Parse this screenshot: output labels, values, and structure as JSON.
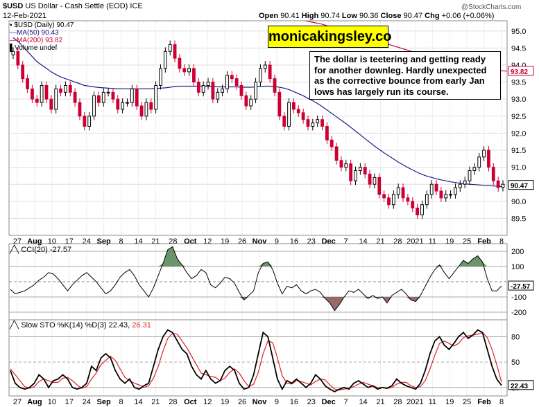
{
  "header": {
    "symbol": "$USD",
    "name": "US Dollar - Cash Settle (EOD)",
    "exchange": "ICE",
    "date": "12-Feb-2021",
    "open_label": "Open",
    "open": "90.41",
    "high_label": "High",
    "high": "90.74",
    "low_label": "Low",
    "low": "90.36",
    "close_label": "Close",
    "close": "90.47",
    "chg_label": "Chg",
    "chg": "+0.06 (+0.06%)",
    "logo": "@StockCharts.com"
  },
  "legend": {
    "price": "$USD (Daily) 90.47",
    "ma50": "MA(50) 90.43",
    "ma200": "MA(200) 93.82",
    "volume": "Volume undef"
  },
  "ad_label": "monicakingsley.co",
  "note_text": "The dollar is teetering and getting ready for another downleg. Hardly unexpected as the corrective bounce from early Jan lows has largely run its course.",
  "cci_label": "CCI(20) -27.57",
  "cci_value_box": "-27.57",
  "sto_label_main": "Slow STO %K(14) %D(3) 22.43,",
  "sto_label_d": "26.31",
  "sto_value_box": "22.43",
  "price_value_box": "90.47",
  "ma200_value_box": "93.82",
  "colors": {
    "up": "#000000",
    "down": "#cc0033",
    "ma50": "#1a1a8c",
    "ma200": "#cc0033",
    "cci_pos": "#5a8a5a",
    "cci_neg": "#8a5a5a",
    "sto_d": "#e02020",
    "ad_bg": "#ffff00",
    "grid": "#dddddd"
  },
  "chart_data": [
    {
      "type": "candlestick",
      "title": "$USD (Daily) 90.47",
      "ylim": [
        89.0,
        95.3
      ],
      "yticks": [
        89.5,
        90.0,
        90.5,
        91.0,
        91.5,
        92.0,
        92.5,
        93.0,
        93.5,
        94.0,
        94.5,
        95.0
      ],
      "xticks": [
        "27",
        "Aug",
        "10",
        "17",
        "24",
        "Sep",
        "8",
        "14",
        "21",
        "28",
        "Oct",
        "12",
        "19",
        "26",
        "Nov",
        "9",
        "16",
        "23",
        "Dec",
        "7",
        "14",
        "21",
        "28",
        "2021",
        "11",
        "19",
        "25",
        "Feb",
        "8"
      ],
      "close": [
        94.4,
        94.0,
        93.6,
        93.3,
        93.0,
        92.9,
        93.4,
        93.0,
        92.7,
        93.3,
        93.2,
        93.4,
        93.2,
        92.9,
        92.5,
        92.2,
        92.5,
        93.1,
        92.9,
        93.2,
        93.2,
        93.0,
        92.7,
        92.9,
        92.9,
        93.3,
        92.8,
        92.5,
        92.9,
        92.7,
        93.4,
        93.9,
        94.4,
        94.6,
        94.2,
        93.9,
        93.8,
        93.9,
        93.5,
        93.2,
        93.4,
        93.5,
        93.0,
        93.2,
        93.3,
        93.7,
        93.6,
        93.4,
        93.1,
        92.8,
        93.0,
        93.5,
        93.9,
        94.0,
        93.6,
        93.2,
        92.5,
        92.2,
        92.9,
        92.7,
        92.6,
        92.4,
        92.2,
        92.3,
        92.4,
        92.2,
        91.8,
        91.6,
        91.2,
        91.0,
        91.1,
        90.6,
        90.9,
        91.0,
        90.8,
        90.5,
        90.7,
        90.2,
        90.1,
        89.9,
        90.2,
        90.4,
        90.1,
        90.0,
        89.8,
        89.6,
        89.9,
        90.2,
        90.5,
        90.3,
        90.1,
        90.2,
        90.2,
        90.4,
        90.5,
        90.6,
        90.9,
        91.0,
        91.3,
        91.5,
        91.0,
        90.6,
        90.4,
        90.5
      ],
      "open": [
        94.3,
        94.4,
        94.0,
        93.6,
        93.3,
        93.0,
        92.9,
        93.4,
        93.0,
        92.7,
        93.3,
        93.2,
        93.4,
        93.2,
        92.9,
        92.5,
        92.2,
        92.5,
        93.1,
        92.9,
        93.2,
        93.2,
        93.0,
        92.7,
        92.9,
        92.9,
        93.3,
        92.8,
        92.5,
        92.9,
        92.7,
        93.4,
        93.9,
        94.4,
        94.6,
        94.2,
        93.9,
        93.8,
        93.9,
        93.5,
        93.2,
        93.4,
        93.5,
        93.0,
        93.2,
        93.3,
        93.7,
        93.6,
        93.4,
        93.1,
        92.8,
        93.0,
        93.5,
        93.9,
        94.0,
        93.6,
        93.2,
        92.5,
        92.2,
        92.9,
        92.7,
        92.6,
        92.4,
        92.2,
        92.3,
        92.4,
        92.2,
        91.8,
        91.6,
        91.2,
        91.0,
        91.1,
        90.6,
        90.9,
        91.0,
        90.8,
        90.5,
        90.7,
        90.2,
        90.1,
        89.9,
        90.2,
        90.4,
        90.1,
        90.0,
        89.8,
        89.6,
        89.9,
        90.2,
        90.5,
        90.3,
        90.1,
        90.2,
        90.2,
        90.4,
        90.5,
        90.6,
        90.9,
        91.0,
        91.3,
        91.5,
        91.0,
        90.6,
        90.41
      ],
      "ma50": [
        94.8,
        94.7,
        94.55,
        94.4,
        94.25,
        94.1,
        94.0,
        93.9,
        93.8,
        93.72,
        93.65,
        93.6,
        93.55,
        93.5,
        93.45,
        93.4,
        93.38,
        93.36,
        93.34,
        93.33,
        93.32,
        93.31,
        93.3,
        93.3,
        93.3,
        93.3,
        93.3,
        93.3,
        93.3,
        93.3,
        93.31,
        93.32,
        93.33,
        93.35,
        93.37,
        93.38,
        93.38,
        93.38,
        93.38,
        93.38,
        93.38,
        93.38,
        93.37,
        93.36,
        93.36,
        93.36,
        93.36,
        93.36,
        93.35,
        93.35,
        93.35,
        93.36,
        93.37,
        93.38,
        93.38,
        93.37,
        93.35,
        93.32,
        93.28,
        93.22,
        93.16,
        93.1,
        93.02,
        92.95,
        92.87,
        92.78,
        92.68,
        92.58,
        92.48,
        92.38,
        92.28,
        92.17,
        92.06,
        91.95,
        91.84,
        91.73,
        91.62,
        91.52,
        91.42,
        91.33,
        91.24,
        91.15,
        91.07,
        90.99,
        90.92,
        90.85,
        90.79,
        90.74,
        90.7,
        90.66,
        90.63,
        90.6,
        90.57,
        90.55,
        90.53,
        90.51,
        90.5,
        90.49,
        90.48,
        90.47,
        90.46,
        90.45,
        90.44,
        90.43
      ],
      "ma200_tail": [
        95.3,
        95.2,
        95.05,
        94.9,
        94.75,
        94.6,
        94.45,
        94.3,
        94.15,
        94.05,
        93.95,
        93.86,
        93.82
      ],
      "last": 90.47,
      "ma50_last": 90.43,
      "ma200_last": 93.82
    },
    {
      "type": "line",
      "title": "CCI(20) -27.57",
      "ylim": [
        -250,
        250
      ],
      "yticks": [
        200,
        100,
        -100,
        -200
      ],
      "values": [
        -50,
        -80,
        -70,
        -60,
        -40,
        -20,
        10,
        30,
        60,
        50,
        20,
        -20,
        -60,
        -20,
        10,
        40,
        60,
        30,
        0,
        -40,
        -80,
        -60,
        -20,
        30,
        60,
        80,
        40,
        -20,
        -60,
        -100,
        -40,
        40,
        120,
        210,
        230,
        150,
        110,
        60,
        20,
        40,
        80,
        60,
        -20,
        -40,
        -10,
        30,
        20,
        -10,
        -70,
        -120,
        -90,
        -60,
        60,
        120,
        130,
        80,
        -10,
        -80,
        -30,
        -40,
        -20,
        -60,
        -80,
        -60,
        -50,
        -70,
        -110,
        -140,
        -190,
        -150,
        -100,
        -60,
        -70,
        -50,
        -80,
        -110,
        -90,
        -110,
        -100,
        -140,
        -90,
        -70,
        -50,
        -80,
        -120,
        -130,
        -90,
        -30,
        30,
        80,
        110,
        60,
        20,
        60,
        100,
        140,
        120,
        150,
        170,
        130,
        20,
        -60,
        -60,
        -27.57
      ],
      "last": -27.57
    },
    {
      "type": "line",
      "title": "Slow STO %K(14) %D(3) 22.43, 26.31",
      "ylim": [
        10,
        100
      ],
      "yticks": [
        80,
        50,
        20
      ],
      "series": [
        {
          "name": "%K(14)",
          "values": [
            40,
            25,
            20,
            18,
            20,
            25,
            35,
            30,
            20,
            28,
            30,
            35,
            30,
            20,
            18,
            20,
            25,
            45,
            40,
            55,
            60,
            55,
            40,
            30,
            25,
            30,
            20,
            18,
            22,
            25,
            45,
            65,
            80,
            88,
            85,
            75,
            65,
            60,
            45,
            35,
            30,
            40,
            30,
            25,
            28,
            40,
            45,
            40,
            25,
            18,
            20,
            35,
            60,
            85,
            80,
            55,
            30,
            18,
            28,
            25,
            30,
            25,
            20,
            25,
            35,
            30,
            22,
            18,
            15,
            18,
            20,
            18,
            25,
            28,
            24,
            20,
            22,
            18,
            20,
            19,
            22,
            30,
            25,
            22,
            20,
            18,
            25,
            40,
            60,
            75,
            80,
            70,
            65,
            72,
            80,
            85,
            78,
            82,
            88,
            85,
            65,
            45,
            30,
            22.43
          ]
        },
        {
          "name": "%D(3)",
          "values": [
            42,
            35,
            28,
            21,
            19,
            21,
            27,
            30,
            28,
            26,
            26,
            31,
            32,
            28,
            23,
            19,
            21,
            30,
            37,
            47,
            52,
            57,
            52,
            42,
            32,
            28,
            25,
            23,
            20,
            22,
            31,
            45,
            63,
            78,
            84,
            83,
            75,
            67,
            57,
            47,
            37,
            35,
            33,
            32,
            28,
            31,
            38,
            42,
            37,
            28,
            21,
            24,
            38,
            60,
            75,
            73,
            55,
            34,
            25,
            24,
            28,
            27,
            25,
            23,
            27,
            30,
            29,
            23,
            18,
            17,
            18,
            19,
            21,
            24,
            26,
            24,
            22,
            20,
            20,
            19,
            20,
            24,
            26,
            26,
            22,
            20,
            21,
            28,
            42,
            58,
            72,
            75,
            72,
            69,
            72,
            79,
            81,
            82,
            83,
            85,
            79,
            65,
            47,
            26.31
          ]
        }
      ],
      "last_k": 22.43,
      "last_d": 26.31
    }
  ]
}
